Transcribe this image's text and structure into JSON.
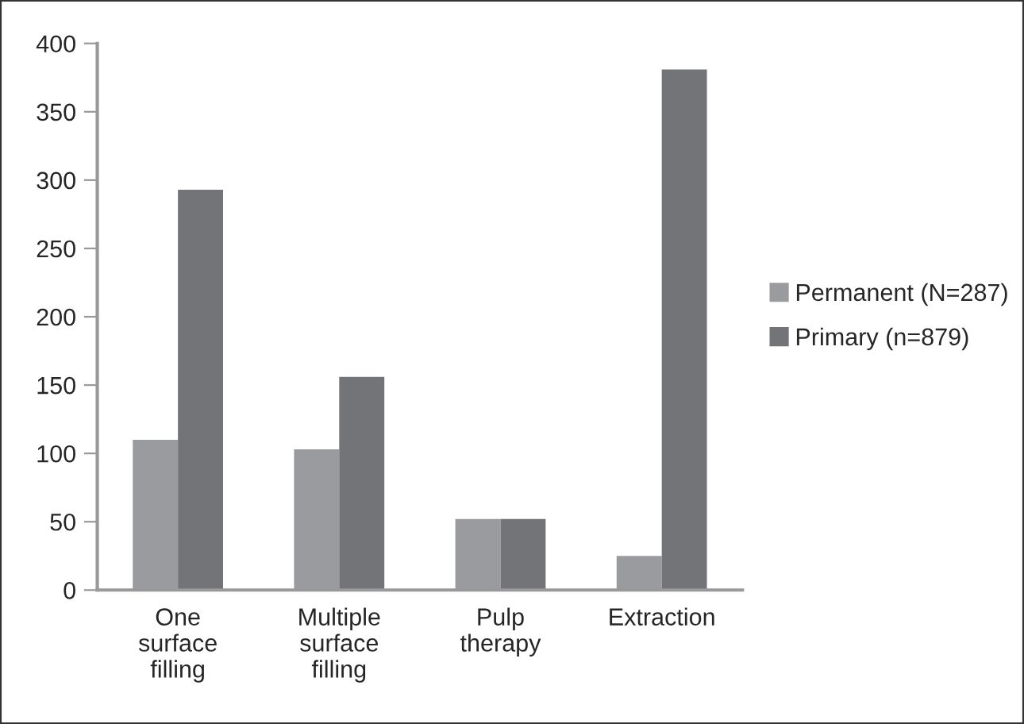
{
  "chart_data": {
    "type": "bar",
    "categories": [
      "One\nsurface\nfilling",
      "Multiple\nsurface\nfilling",
      "Pulp\ntherapy",
      "Extraction"
    ],
    "series": [
      {
        "name": "Permanent (N=287)",
        "color": "#9a9b9e",
        "values": [
          110,
          103,
          52,
          25
        ]
      },
      {
        "name": "Primary (n=879)",
        "color": "#737478",
        "values": [
          293,
          156,
          52,
          381
        ]
      }
    ],
    "ylim": [
      0,
      400
    ],
    "yticks": [
      0,
      50,
      100,
      150,
      200,
      250,
      300,
      350,
      400
    ],
    "grid": false,
    "legend": "right"
  }
}
